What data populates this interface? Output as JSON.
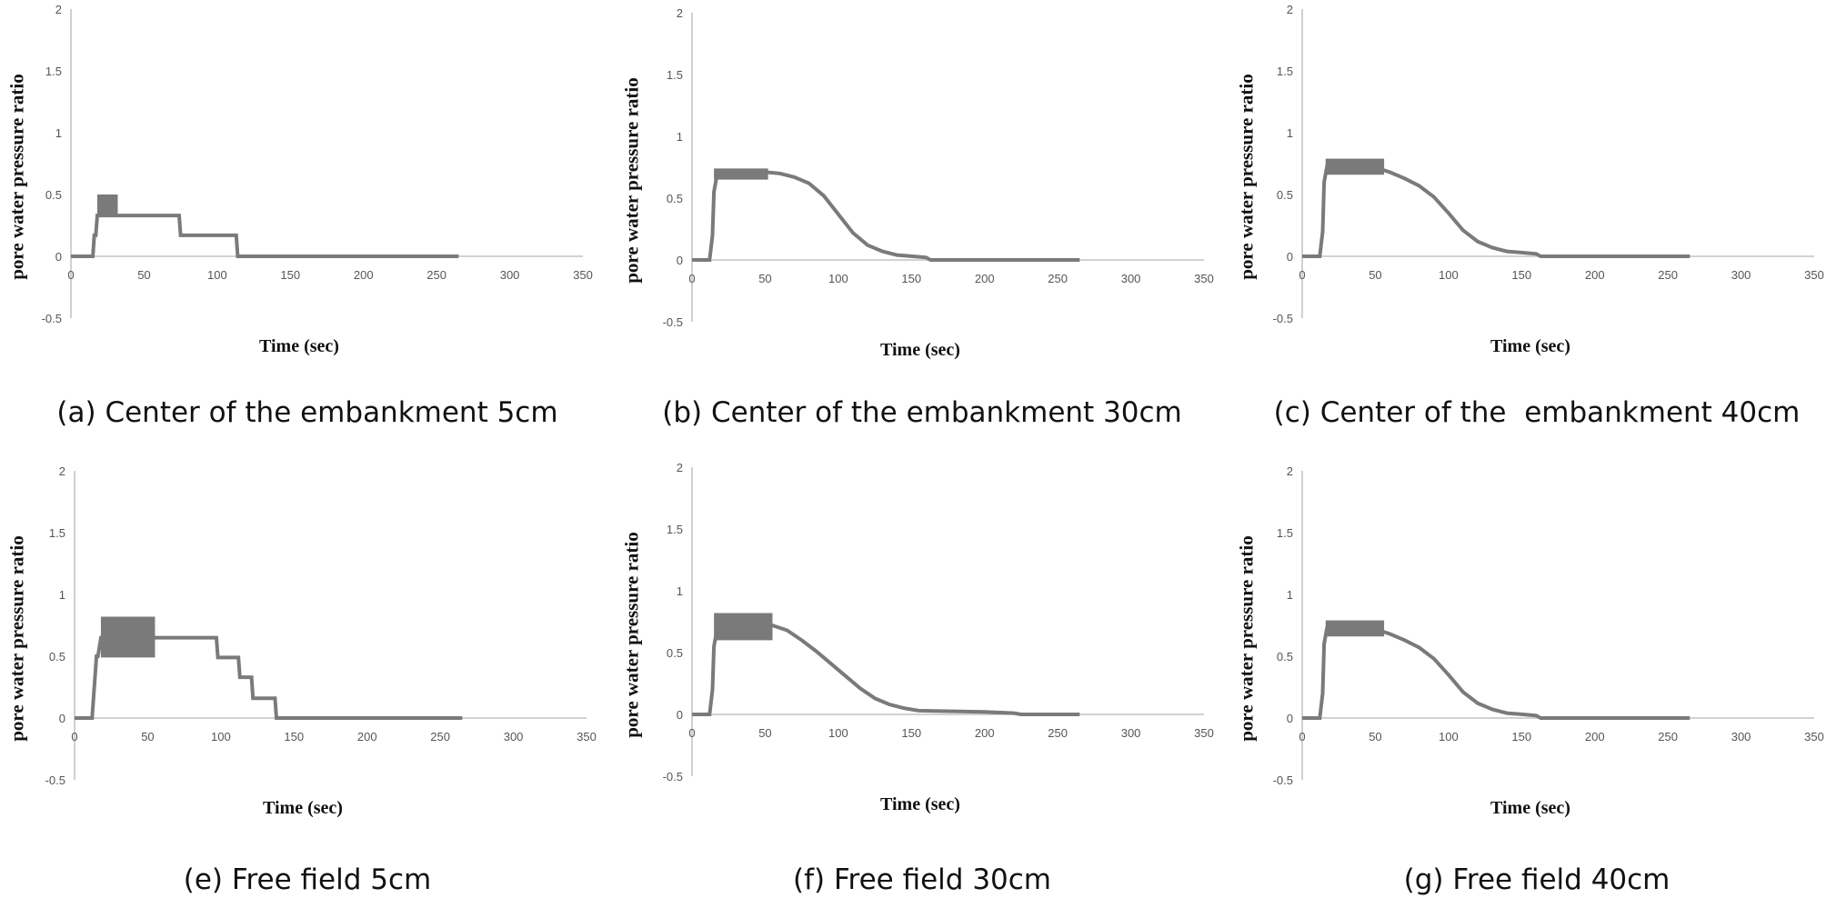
{
  "colors": {
    "series": "#7a7a7a",
    "axis": "#b7b7b7",
    "text": "#111111"
  },
  "chart_data": [
    {
      "id": "a",
      "type": "line",
      "caption": "(a) Center of the embankment 5cm",
      "xlabel": "Time (sec)",
      "ylabel": "pore water pressure ratio",
      "xlim": [
        0,
        350
      ],
      "ylim": [
        -0.5,
        2
      ],
      "xticks": [
        "0",
        "50",
        "100",
        "150",
        "200",
        "250",
        "300",
        "350"
      ],
      "yticks": [
        "-0.5",
        "0",
        "0.5",
        "1",
        "1.5",
        "2"
      ],
      "grid": false,
      "series": [
        {
          "x": [
            0,
            15,
            16,
            17,
            18,
            28,
            29,
            30,
            74,
            75,
            113,
            114,
            265
          ],
          "y": [
            0,
            0,
            0.17,
            0.17,
            0.33,
            0.33,
            0.33,
            0.33,
            0.33,
            0.17,
            0.17,
            0,
            0
          ]
        }
      ],
      "band": {
        "x": [
          18,
          32
        ],
        "y": [
          0.33,
          0.5
        ]
      }
    },
    {
      "id": "b",
      "type": "line",
      "caption": "(b) Center of the embankment 30cm",
      "xlabel": "Time (sec)",
      "ylabel": "pore water pressure ratio",
      "xlim": [
        0,
        350
      ],
      "ylim": [
        -0.5,
        2
      ],
      "xticks": [
        "0",
        "50",
        "100",
        "150",
        "200",
        "250",
        "300",
        "350"
      ],
      "yticks": [
        "-0.5",
        "0",
        "0.5",
        "1",
        "1.5",
        "2"
      ],
      "grid": false,
      "series": [
        {
          "x": [
            0,
            12,
            14,
            15,
            17,
            20,
            50,
            60,
            70,
            80,
            90,
            100,
            110,
            120,
            130,
            140,
            150,
            160,
            163,
            265
          ],
          "y": [
            0,
            0,
            0.2,
            0.55,
            0.68,
            0.71,
            0.71,
            0.7,
            0.67,
            0.62,
            0.52,
            0.37,
            0.22,
            0.12,
            0.07,
            0.04,
            0.03,
            0.02,
            0,
            0
          ]
        }
      ],
      "band": {
        "x": [
          15,
          52
        ],
        "y": [
          0.65,
          0.74
        ]
      }
    },
    {
      "id": "c",
      "type": "line",
      "caption": "(c) Center of the  embankment 40cm",
      "xlabel": "Time (sec)",
      "ylabel": "pore water pressure ratio",
      "xlim": [
        0,
        350
      ],
      "ylim": [
        -0.5,
        2
      ],
      "xticks": [
        "0",
        "50",
        "100",
        "150",
        "200",
        "250",
        "300",
        "350"
      ],
      "yticks": [
        "-0.5",
        "0",
        "0.5",
        "1",
        "1.5",
        "2"
      ],
      "grid": false,
      "series": [
        {
          "x": [
            0,
            12,
            14,
            15,
            17,
            20,
            50,
            60,
            70,
            80,
            90,
            100,
            110,
            120,
            130,
            140,
            150,
            160,
            163,
            265
          ],
          "y": [
            0,
            0,
            0.2,
            0.6,
            0.73,
            0.75,
            0.72,
            0.68,
            0.63,
            0.57,
            0.48,
            0.35,
            0.21,
            0.12,
            0.07,
            0.04,
            0.03,
            0.02,
            0,
            0
          ]
        }
      ],
      "band": {
        "x": [
          16,
          56
        ],
        "y": [
          0.66,
          0.79
        ]
      }
    },
    {
      "id": "e",
      "type": "line",
      "caption": "(e) Free field 5cm",
      "xlabel": "Time (sec)",
      "ylabel": "pore water pressure ratio",
      "xlim": [
        0,
        350
      ],
      "ylim": [
        -0.5,
        2
      ],
      "xticks": [
        "0",
        "50",
        "100",
        "150",
        "200",
        "250",
        "300",
        "350"
      ],
      "yticks": [
        "-0.5",
        "0",
        "0.5",
        "1",
        "1.5",
        "2"
      ],
      "grid": false,
      "series": [
        {
          "x": [
            0,
            12,
            13,
            15,
            16,
            18,
            55,
            97,
            98,
            112,
            113,
            121,
            122,
            137,
            138,
            265
          ],
          "y": [
            0,
            0,
            0.17,
            0.5,
            0.5,
            0.65,
            0.65,
            0.65,
            0.49,
            0.49,
            0.33,
            0.33,
            0.16,
            0.16,
            0,
            0
          ]
        }
      ],
      "band": {
        "x": [
          18,
          55
        ],
        "y": [
          0.49,
          0.82
        ]
      }
    },
    {
      "id": "f",
      "type": "line",
      "caption": "(f) Free field 30cm",
      "xlabel": "Time (sec)",
      "ylabel": "pore water pressure ratio",
      "xlim": [
        0,
        350
      ],
      "ylim": [
        -0.5,
        2
      ],
      "xticks": [
        "0",
        "50",
        "100",
        "150",
        "200",
        "250",
        "300",
        "350"
      ],
      "yticks": [
        "-0.5",
        "0",
        "0.5",
        "1",
        "1.5",
        "2"
      ],
      "grid": false,
      "series": [
        {
          "x": [
            0,
            12,
            14,
            15,
            17,
            20,
            55,
            65,
            75,
            85,
            95,
            105,
            115,
            125,
            135,
            145,
            155,
            200,
            220,
            225,
            265
          ],
          "y": [
            0,
            0,
            0.2,
            0.55,
            0.68,
            0.72,
            0.72,
            0.68,
            0.6,
            0.51,
            0.41,
            0.31,
            0.21,
            0.13,
            0.08,
            0.05,
            0.03,
            0.02,
            0.01,
            0,
            0
          ]
        }
      ],
      "band": {
        "x": [
          15,
          55
        ],
        "y": [
          0.6,
          0.82
        ]
      }
    },
    {
      "id": "g",
      "type": "line",
      "caption": "(g) Free field 40cm",
      "xlabel": "Time (sec)",
      "ylabel": "pore water pressure ratio",
      "xlim": [
        0,
        350
      ],
      "ylim": [
        -0.5,
        2
      ],
      "xticks": [
        "0",
        "50",
        "100",
        "150",
        "200",
        "250",
        "300",
        "350"
      ],
      "yticks": [
        "-0.5",
        "0",
        "0.5",
        "1",
        "1.5",
        "2"
      ],
      "grid": false,
      "series": [
        {
          "x": [
            0,
            12,
            14,
            15,
            17,
            20,
            50,
            60,
            70,
            80,
            90,
            100,
            110,
            120,
            130,
            140,
            150,
            160,
            163,
            265
          ],
          "y": [
            0,
            0,
            0.2,
            0.6,
            0.73,
            0.75,
            0.72,
            0.68,
            0.63,
            0.57,
            0.48,
            0.35,
            0.21,
            0.12,
            0.07,
            0.04,
            0.03,
            0.02,
            0,
            0
          ]
        }
      ],
      "band": {
        "x": [
          16,
          56
        ],
        "y": [
          0.66,
          0.79
        ]
      }
    }
  ]
}
